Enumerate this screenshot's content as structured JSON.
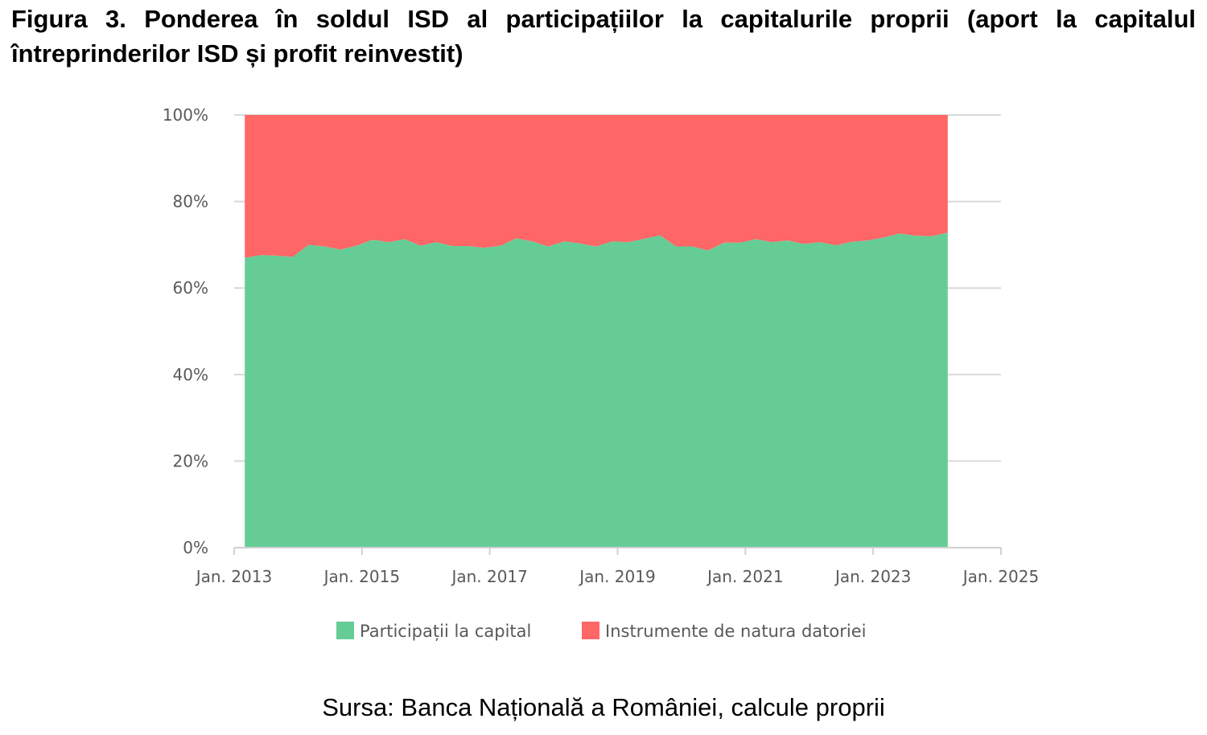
{
  "figure": {
    "title": "Figura 3. Ponderea în soldul ISD al participațiilor la capitalurile proprii (aport la capitalul întreprinderilor ISD și profit reinvestit)",
    "source": "Sursa: Banca Națională a României, calcule proprii"
  },
  "chart_data": {
    "type": "area",
    "stacked": true,
    "normalized": true,
    "x_tick_labels": [
      "Jan. 2013",
      "Jan. 2015",
      "Jan. 2017",
      "Jan. 2019",
      "Jan. 2021",
      "Jan. 2023",
      "Jan. 2025"
    ],
    "y_tick_labels": [
      "0%",
      "20%",
      "40%",
      "60%",
      "80%",
      "100%"
    ],
    "xlim": [
      "2013-01",
      "2025-01"
    ],
    "ylim": [
      0,
      100
    ],
    "grid": "horizontal",
    "legend_position": "bottom",
    "x": [
      "2013-03",
      "2013-06",
      "2013-09",
      "2013-12",
      "2014-03",
      "2014-06",
      "2014-09",
      "2014-12",
      "2015-03",
      "2015-06",
      "2015-09",
      "2015-12",
      "2016-03",
      "2016-06",
      "2016-09",
      "2016-12",
      "2017-03",
      "2017-06",
      "2017-09",
      "2017-12",
      "2018-03",
      "2018-06",
      "2018-09",
      "2018-12",
      "2019-03",
      "2019-06",
      "2019-09",
      "2019-12",
      "2020-03",
      "2020-06",
      "2020-09",
      "2020-12",
      "2021-03",
      "2021-06",
      "2021-09",
      "2021-12",
      "2022-03",
      "2022-06",
      "2022-09",
      "2022-12",
      "2023-03",
      "2023-06",
      "2023-09",
      "2023-12",
      "2024-03"
    ],
    "series": [
      {
        "name": "Participații la capital",
        "color": "#66cc96",
        "values": [
          67.0,
          67.6,
          67.5,
          67.2,
          70.0,
          69.6,
          68.9,
          69.8,
          71.2,
          70.6,
          71.3,
          69.8,
          70.6,
          69.7,
          69.7,
          69.3,
          69.8,
          71.5,
          70.8,
          69.6,
          70.8,
          70.3,
          69.6,
          70.8,
          70.6,
          71.4,
          72.2,
          69.6,
          69.6,
          68.7,
          70.5,
          70.5,
          71.3,
          70.6,
          71.0,
          70.2,
          70.6,
          69.9,
          70.7,
          71.0,
          71.7,
          72.6,
          72.1,
          72.0,
          72.8
        ]
      },
      {
        "name": "Instrumente de natura datoriei",
        "color": "#ff6666",
        "values": [
          33.0,
          32.4,
          32.5,
          32.8,
          30.0,
          30.4,
          31.1,
          30.2,
          28.8,
          29.4,
          28.7,
          30.2,
          29.4,
          30.3,
          30.3,
          30.7,
          30.2,
          28.5,
          29.2,
          30.4,
          29.2,
          29.7,
          30.4,
          29.2,
          29.4,
          28.6,
          27.8,
          30.4,
          30.4,
          31.3,
          29.5,
          29.5,
          28.7,
          29.4,
          29.0,
          29.8,
          29.4,
          30.1,
          29.3,
          29.0,
          28.3,
          27.4,
          27.9,
          28.0,
          27.2
        ]
      }
    ]
  }
}
